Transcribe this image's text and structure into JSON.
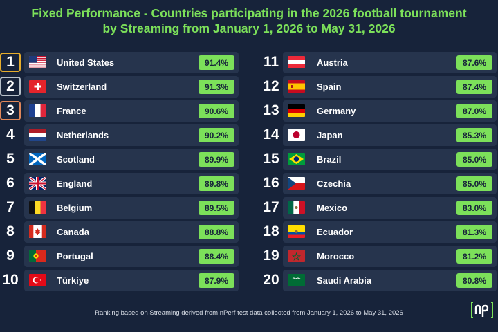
{
  "title_line1": "Fixed Performance - Countries participating in the 2026 football tournament",
  "title_line2": "by Streaming from January 1, 2026 to May 31, 2026",
  "colors": {
    "accent": "#7ce05a",
    "background": "#17233a",
    "card": "#26344d",
    "gold": "#e6ad2c",
    "silver": "#b9c2cb",
    "bronze": "#e0875a"
  },
  "left": [
    {
      "rank": "1",
      "country": "United States",
      "score": "91.4%",
      "flag_icon": "us-flag-icon"
    },
    {
      "rank": "2",
      "country": "Switzerland",
      "score": "91.3%",
      "flag_icon": "switzerland-flag-icon"
    },
    {
      "rank": "3",
      "country": "France",
      "score": "90.6%",
      "flag_icon": "france-flag-icon"
    },
    {
      "rank": "4",
      "country": "Netherlands",
      "score": "90.2%",
      "flag_icon": "netherlands-flag-icon"
    },
    {
      "rank": "5",
      "country": "Scotland",
      "score": "89.9%",
      "flag_icon": "scotland-flag-icon"
    },
    {
      "rank": "6",
      "country": "England",
      "score": "89.8%",
      "flag_icon": "uk-flag-icon"
    },
    {
      "rank": "7",
      "country": "Belgium",
      "score": "89.5%",
      "flag_icon": "belgium-flag-icon"
    },
    {
      "rank": "8",
      "country": "Canada",
      "score": "88.8%",
      "flag_icon": "canada-flag-icon"
    },
    {
      "rank": "9",
      "country": "Portugal",
      "score": "88.4%",
      "flag_icon": "portugal-flag-icon"
    },
    {
      "rank": "10",
      "country": "Türkiye",
      "score": "87.9%",
      "flag_icon": "turkiye-flag-icon"
    }
  ],
  "right": [
    {
      "rank": "11",
      "country": "Austria",
      "score": "87.6%",
      "flag_icon": "austria-flag-icon"
    },
    {
      "rank": "12",
      "country": "Spain",
      "score": "87.4%",
      "flag_icon": "spain-flag-icon"
    },
    {
      "rank": "13",
      "country": "Germany",
      "score": "87.0%",
      "flag_icon": "germany-flag-icon"
    },
    {
      "rank": "14",
      "country": "Japan",
      "score": "85.3%",
      "flag_icon": "japan-flag-icon"
    },
    {
      "rank": "15",
      "country": "Brazil",
      "score": "85.0%",
      "flag_icon": "brazil-flag-icon"
    },
    {
      "rank": "16",
      "country": "Czechia",
      "score": "85.0%",
      "flag_icon": "czechia-flag-icon"
    },
    {
      "rank": "17",
      "country": "Mexico",
      "score": "83.0%",
      "flag_icon": "mexico-flag-icon"
    },
    {
      "rank": "18",
      "country": "Ecuador",
      "score": "81.3%",
      "flag_icon": "ecuador-flag-icon"
    },
    {
      "rank": "19",
      "country": "Morocco",
      "score": "81.2%",
      "flag_icon": "morocco-flag-icon"
    },
    {
      "rank": "20",
      "country": "Saudi Arabia",
      "score": "80.8%",
      "flag_icon": "saudi-arabia-flag-icon"
    }
  ],
  "footer": "Ranking based on Streaming derived from nPerf test data collected from January 1, 2026 to May 31, 2026",
  "logo": {
    "name": "nperf-logo-icon"
  }
}
